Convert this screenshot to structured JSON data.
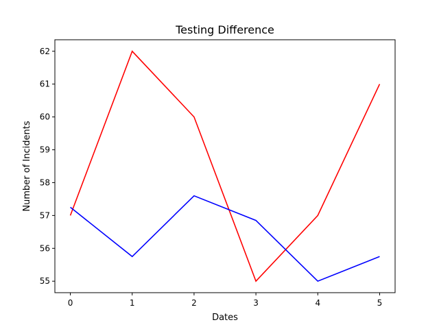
{
  "chart_data": {
    "type": "line",
    "title": "Testing Difference",
    "xlabel": "Dates",
    "ylabel": "Number of Incidents",
    "x": [
      0,
      1,
      2,
      3,
      4,
      5
    ],
    "xticks": [
      0,
      1,
      2,
      3,
      4,
      5
    ],
    "yticks": [
      55,
      56,
      57,
      58,
      59,
      60,
      61,
      62
    ],
    "xlim": [
      -0.25,
      5.25
    ],
    "ylim": [
      54.65,
      62.35
    ],
    "grid": false,
    "series": [
      {
        "color": "#ff0000",
        "values": [
          57,
          62,
          60,
          55,
          57,
          61
        ]
      },
      {
        "color": "#0000ff",
        "values": [
          57.25,
          55.75,
          57.6,
          56.85,
          55.0,
          55.75
        ]
      }
    ]
  }
}
